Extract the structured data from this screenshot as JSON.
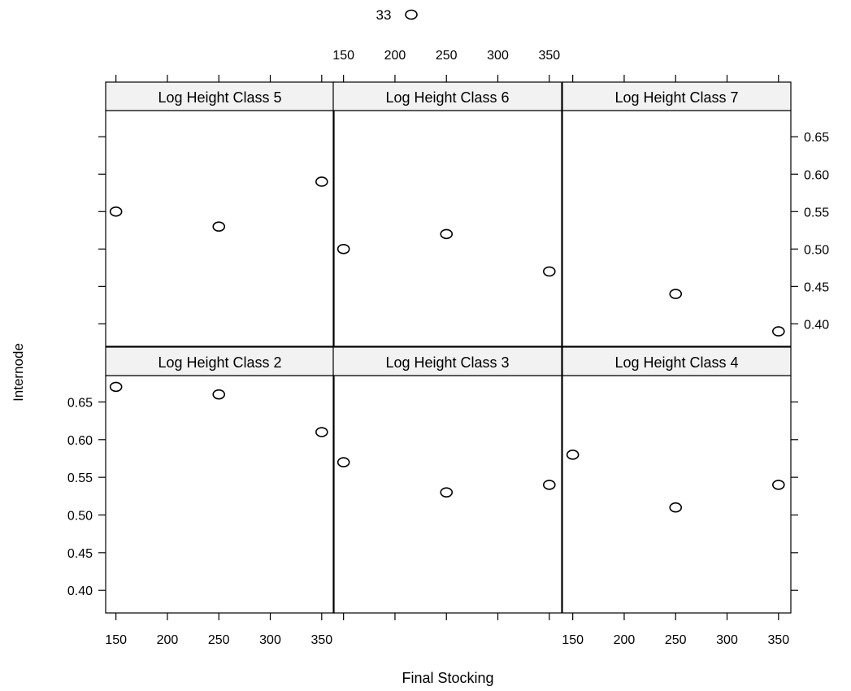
{
  "chart_data": {
    "type": "scatter",
    "xlabel": "Final Stocking",
    "ylabel": "Internode",
    "legend": {
      "label": "33",
      "symbol": "open-circle",
      "placement": "top-center"
    },
    "xlim": [
      140,
      362
    ],
    "ylim": [
      0.37,
      0.685
    ],
    "x_ticks": [
      150,
      200,
      250,
      300,
      350
    ],
    "y_ticks": [
      0.4,
      0.45,
      0.5,
      0.55,
      0.6,
      0.65
    ],
    "x_tick_labels": [
      "150",
      "200",
      "250",
      "300",
      "350"
    ],
    "y_tick_labels": [
      "0.40",
      "0.45",
      "0.50",
      "0.55",
      "0.60",
      "0.65"
    ],
    "panels": [
      {
        "title": "Log Height Class 5",
        "row": 0,
        "col": 0,
        "points": [
          {
            "x": 150,
            "y": 0.55
          },
          {
            "x": 250,
            "y": 0.53
          },
          {
            "x": 350,
            "y": 0.59
          }
        ]
      },
      {
        "title": "Log Height Class 6",
        "row": 0,
        "col": 1,
        "points": [
          {
            "x": 150,
            "y": 0.5
          },
          {
            "x": 250,
            "y": 0.52
          },
          {
            "x": 350,
            "y": 0.47
          }
        ]
      },
      {
        "title": "Log Height Class 7",
        "row": 0,
        "col": 2,
        "points": [
          {
            "x": 250,
            "y": 0.44
          },
          {
            "x": 350,
            "y": 0.39
          }
        ]
      },
      {
        "title": "Log Height Class 2",
        "row": 1,
        "col": 0,
        "points": [
          {
            "x": 150,
            "y": 0.67
          },
          {
            "x": 250,
            "y": 0.66
          },
          {
            "x": 350,
            "y": 0.61
          }
        ]
      },
      {
        "title": "Log Height Class 3",
        "row": 1,
        "col": 1,
        "points": [
          {
            "x": 150,
            "y": 0.57
          },
          {
            "x": 250,
            "y": 0.53
          },
          {
            "x": 350,
            "y": 0.54
          }
        ]
      },
      {
        "title": "Log Height Class 4",
        "row": 1,
        "col": 2,
        "points": [
          {
            "x": 150,
            "y": 0.58
          },
          {
            "x": 250,
            "y": 0.51
          },
          {
            "x": 350,
            "y": 0.54
          }
        ]
      }
    ]
  }
}
